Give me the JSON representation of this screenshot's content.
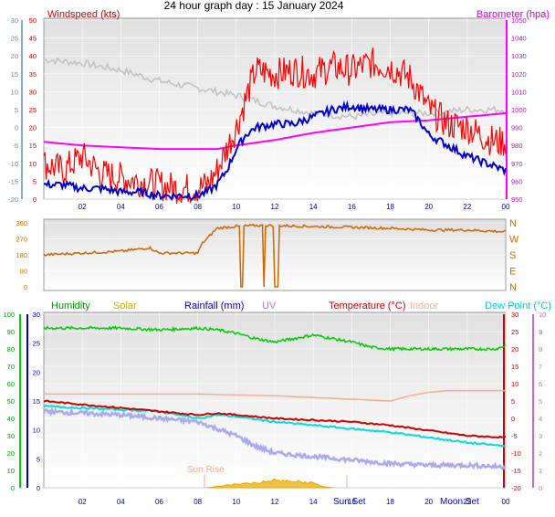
{
  "title": "24 hour graph day : 15 January 2024",
  "colors": {
    "wind_avg": "#0000cc",
    "wind_gust": "#ff0000",
    "wind_dir_line": "#c0c0c0",
    "barometer": "#ff00ff",
    "direction": "#cc6600",
    "humidity": "#00cc00",
    "solar": "#e6a800",
    "rainfall": "#0000cc",
    "uv": "#cc66cc",
    "temperature": "#cc0000",
    "indoor": "#f0b090",
    "dew_point": "#00dddd",
    "indoor_low": "#aaaaee",
    "ground": "#ffffff"
  },
  "chart_data": [
    {
      "type": "line",
      "panel": "wind",
      "labels": {
        "left": "Windspeed (kts)",
        "right": "Barometer (hpa)"
      },
      "x_ticks": [
        "02",
        "04",
        "06",
        "08",
        "10",
        "12",
        "14",
        "16",
        "18",
        "20",
        "22",
        "00"
      ],
      "y_left_inner_ticks": [
        "50",
        "45",
        "40",
        "35",
        "30",
        "25",
        "20",
        "15",
        "10",
        "5",
        "0"
      ],
      "y_left_outer_ticks": [
        "30",
        "25",
        "20",
        "15",
        "10",
        "5",
        "0",
        "-5",
        "-10",
        "-15",
        "-20"
      ],
      "y_right_ticks": [
        "1050",
        "1040",
        "1030",
        "1020",
        "1010",
        "1000",
        "990",
        "980",
        "970",
        "960",
        "950"
      ],
      "ylim_left": [
        0,
        50
      ],
      "ylim_right": [
        950,
        1050
      ],
      "series": [
        {
          "name": "gust",
          "x": [
            0,
            1,
            2,
            3,
            4,
            5,
            6,
            7,
            8,
            8.5,
            9,
            9.5,
            10,
            10.5,
            11,
            12,
            13,
            14,
            15,
            16,
            17,
            18,
            19,
            19.5,
            20,
            21,
            22,
            23,
            23.5,
            24
          ],
          "values": [
            10,
            8,
            12,
            7,
            6,
            5,
            4,
            3,
            3,
            4,
            8,
            14,
            20,
            28,
            36,
            35,
            36,
            35,
            37,
            36,
            38,
            37,
            34,
            30,
            25,
            21,
            20,
            17,
            16,
            16
          ]
        },
        {
          "name": "average",
          "x": [
            0,
            1,
            2,
            3,
            4,
            5,
            6,
            7,
            8,
            8.5,
            9,
            9.5,
            10,
            10.5,
            11,
            12,
            13,
            14,
            15,
            16,
            17,
            18,
            19,
            19.5,
            20,
            21,
            22,
            23,
            23.5,
            24
          ],
          "values": [
            4,
            4,
            3,
            3,
            2,
            2,
            1,
            1,
            1,
            2,
            4,
            8,
            14,
            18,
            20,
            21,
            21,
            23,
            25,
            26,
            25,
            25,
            25,
            22,
            18,
            15,
            12,
            10,
            9,
            8
          ]
        },
        {
          "name": "barometer",
          "x": [
            0,
            2,
            4,
            6,
            8,
            9,
            10,
            12,
            14,
            16,
            18,
            20,
            22,
            24
          ],
          "values": [
            982,
            980,
            979,
            978,
            978,
            978,
            980,
            983,
            987,
            990,
            993,
            994,
            996,
            998
          ]
        },
        {
          "name": "direction-trace",
          "x": [
            0,
            2,
            4,
            6,
            8,
            9,
            10,
            12,
            14,
            16,
            18,
            20,
            22,
            24
          ],
          "values": [
            39,
            38,
            36,
            33,
            31,
            30,
            29,
            26,
            24,
            23,
            24,
            24,
            25,
            25
          ]
        }
      ]
    },
    {
      "type": "line",
      "panel": "direction",
      "y_ticks": [
        "360",
        "270",
        "180",
        "90",
        "0"
      ],
      "compass": [
        "N",
        "W",
        "S",
        "E",
        "N"
      ],
      "ylim": [
        0,
        360
      ],
      "series": [
        {
          "name": "direction",
          "x": [
            0,
            2,
            4,
            5.5,
            6,
            7,
            8,
            8.2,
            9,
            10,
            11,
            12,
            14,
            16,
            18,
            20,
            22,
            24
          ],
          "values": [
            180,
            190,
            200,
            220,
            190,
            190,
            190,
            240,
            330,
            340,
            345,
            345,
            340,
            335,
            330,
            320,
            320,
            310
          ]
        }
      ]
    },
    {
      "type": "line",
      "panel": "temperature",
      "labels": [
        "Humidity",
        "Solar",
        "Rainfall (mm)",
        "UV",
        "Temperature (°C)",
        "Indoor",
        "Dew Point (°C)"
      ],
      "x_ticks": [
        "02",
        "04",
        "06",
        "08",
        "10",
        "12",
        "14",
        "16",
        "18",
        "20",
        "22",
        "00"
      ],
      "y_left_outer_ticks": [
        "100",
        "90",
        "80",
        "70",
        "60",
        "50",
        "40",
        "30",
        "20",
        "10",
        "0"
      ],
      "y_left_inner_ticks": [
        "30",
        "25",
        "20",
        "15",
        "10",
        "5",
        "0"
      ],
      "y_right_inner_ticks": [
        "30",
        "25",
        "20",
        "15",
        "10",
        "5",
        "0",
        "-5",
        "-10",
        "-15",
        "-20"
      ],
      "y_right_outer_ticks": [
        "10",
        "9",
        "8",
        "7",
        "6",
        "5",
        "4",
        "3",
        "2",
        "1",
        "0"
      ],
      "events": [
        "Sun Rise",
        "Sun Set",
        "Moon Set"
      ],
      "series": [
        {
          "name": "humidity",
          "x": [
            0,
            2,
            4,
            6,
            8,
            9,
            10,
            11,
            12,
            13,
            14,
            15,
            16,
            17,
            18,
            20,
            22,
            23.5,
            24
          ],
          "values": [
            92,
            92,
            92,
            91,
            92,
            91,
            89,
            86,
            84,
            86,
            88,
            86,
            84,
            81,
            80,
            80,
            80,
            80,
            82
          ]
        },
        {
          "name": "temperature",
          "x": [
            0,
            2,
            4,
            6,
            8,
            9,
            10,
            12,
            14,
            16,
            18,
            20,
            22,
            24
          ],
          "values": [
            5,
            4,
            3,
            2,
            1,
            1.5,
            1,
            0,
            -0.5,
            -1,
            -2,
            -3.5,
            -5,
            -5.5
          ]
        },
        {
          "name": "dew_point",
          "x": [
            0,
            2,
            4,
            6,
            8,
            9,
            10,
            12,
            14,
            16,
            18,
            20,
            22,
            24
          ],
          "values": [
            3.5,
            3,
            2.5,
            2,
            0,
            1,
            0.5,
            -1,
            -2,
            -3,
            -4,
            -5.5,
            -7,
            -8
          ]
        },
        {
          "name": "indoor",
          "x": [
            0,
            4,
            8,
            12,
            16,
            18,
            19,
            20,
            21,
            22,
            24
          ],
          "values": [
            7,
            7,
            7,
            6.5,
            5.5,
            5,
            6.5,
            7.5,
            8,
            8,
            8
          ]
        },
        {
          "name": "indoor_low",
          "x": [
            0,
            2,
            4,
            6,
            8,
            9,
            10,
            11,
            12,
            14,
            16,
            18,
            20,
            22,
            24
          ],
          "values": [
            2,
            1.5,
            1,
            0,
            -1,
            -3,
            -5,
            -8,
            -10,
            -11,
            -12,
            -13,
            -13.5,
            -13.5,
            -14
          ]
        },
        {
          "name": "solar",
          "x": [
            8.5,
            9,
            10,
            11,
            12,
            13,
            14,
            14.5,
            15
          ],
          "values": [
            0,
            0.1,
            0.3,
            0.4,
            0.6,
            0.5,
            0.4,
            0.1,
            0
          ]
        }
      ]
    }
  ]
}
